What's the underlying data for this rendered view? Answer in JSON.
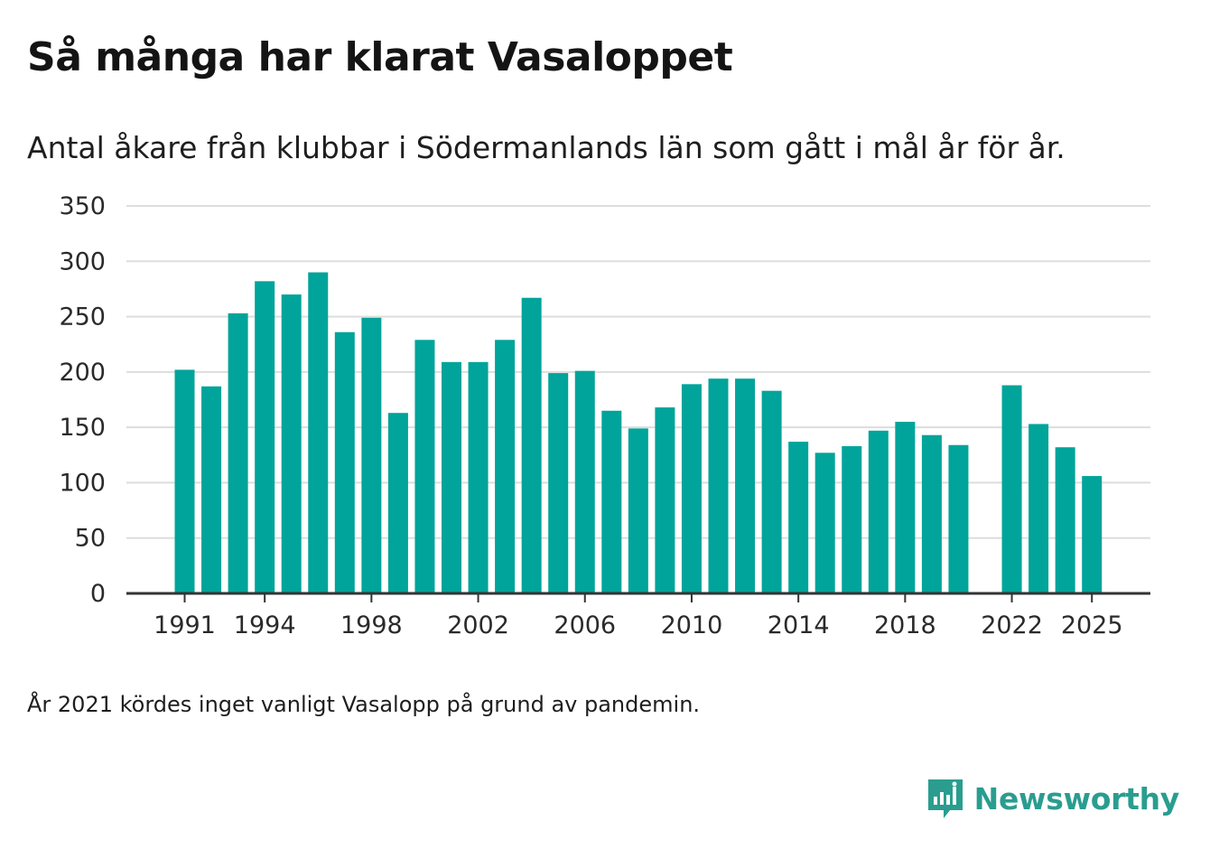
{
  "header": {
    "title": "Så många har klarat Vasaloppet",
    "subtitle": "Antal åkare från klubbar i Södermanlands län som gått i mål år för år."
  },
  "footnote": "År 2021 kördes inget vanligt Vasalopp på grund av pandemin.",
  "brand": {
    "name": "Newsworthy",
    "color": "#2a9d8f"
  },
  "colors": {
    "bar": "#00a49a",
    "grid": "#dddddd",
    "axis": "#333333"
  },
  "chart_data": {
    "type": "bar",
    "title": "Så många har klarat Vasaloppet",
    "xlabel": "",
    "ylabel": "",
    "ylim": [
      0,
      350
    ],
    "yticks": [
      0,
      50,
      100,
      150,
      200,
      250,
      300,
      350
    ],
    "xtick_labels": [
      "1991",
      "1994",
      "1998",
      "2002",
      "2006",
      "2010",
      "2014",
      "2018",
      "2022",
      "2025"
    ],
    "categories": [
      1991,
      1992,
      1993,
      1994,
      1995,
      1996,
      1997,
      1998,
      1999,
      2000,
      2001,
      2002,
      2003,
      2004,
      2005,
      2006,
      2007,
      2008,
      2009,
      2010,
      2011,
      2012,
      2013,
      2014,
      2015,
      2016,
      2017,
      2018,
      2019,
      2020,
      2021,
      2022,
      2023,
      2024,
      2025
    ],
    "values": [
      202,
      187,
      253,
      282,
      270,
      290,
      236,
      249,
      163,
      229,
      209,
      209,
      229,
      267,
      199,
      201,
      165,
      149,
      168,
      189,
      194,
      194,
      183,
      137,
      127,
      133,
      147,
      155,
      143,
      134,
      null,
      188,
      153,
      132,
      106
    ]
  }
}
